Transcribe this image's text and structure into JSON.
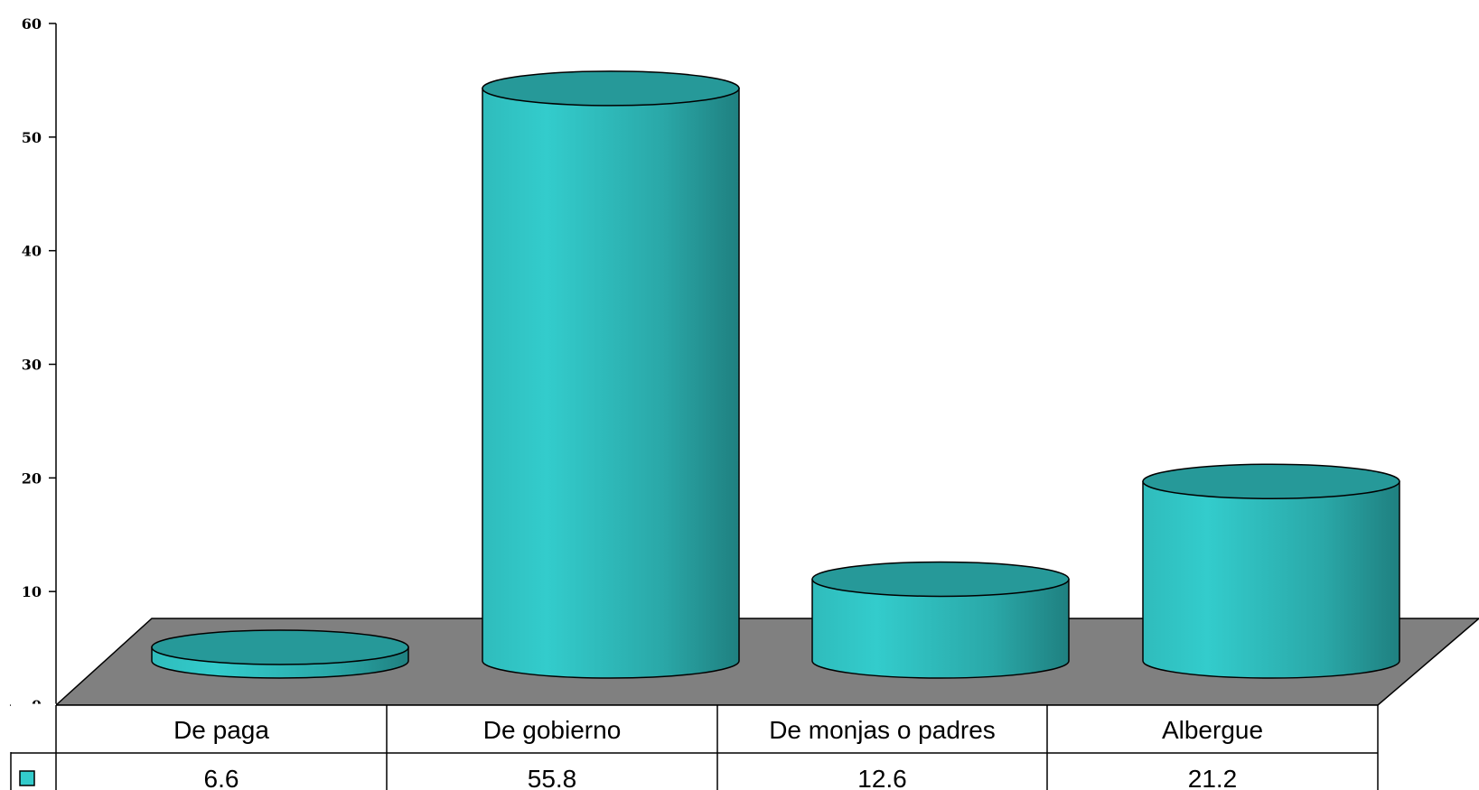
{
  "chart_data": {
    "type": "bar",
    "style": "3d-cylinder",
    "title": "",
    "xlabel": "",
    "ylabel": "",
    "categories": [
      "De paga",
      "De gobierno",
      "De monjas o padres",
      "Albergue"
    ],
    "values": [
      6.6,
      55.8,
      12.6,
      21.2
    ],
    "value_labels": [
      "6.6",
      "55.8",
      "12.6",
      "21.2"
    ],
    "ylim": [
      0,
      60
    ],
    "yticks": [
      0,
      10,
      20,
      30,
      40,
      50,
      60
    ],
    "grid": false,
    "legend": "data-table-below",
    "colors": {
      "bar_side_light": "#33cccc",
      "bar_side_dark": "#1f8080",
      "bar_top": "#269999",
      "floor": "#808080",
      "outline": "#000000"
    }
  }
}
